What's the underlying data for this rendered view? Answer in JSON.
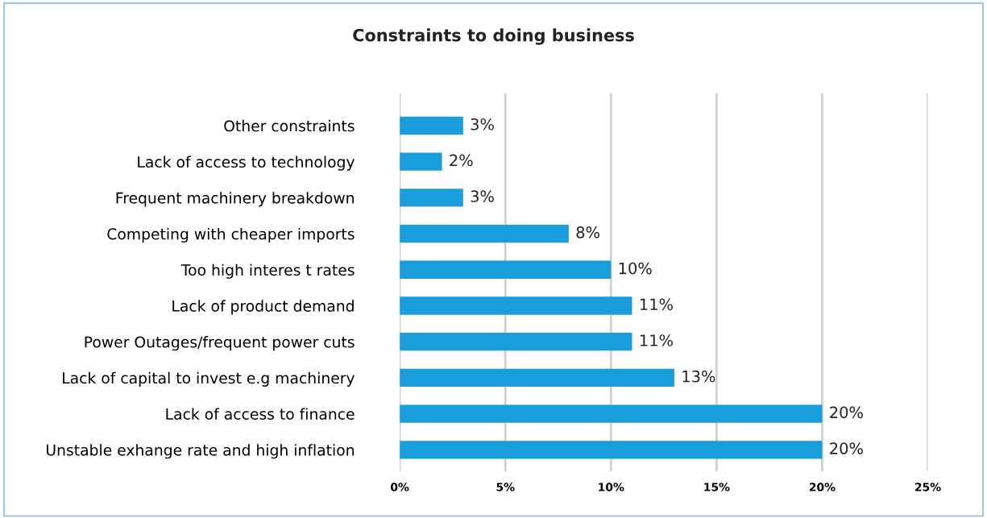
{
  "chart_data": {
    "type": "bar",
    "orientation": "horizontal",
    "title": "Constraints to doing business",
    "categories": [
      "Other constraints",
      "Lack of access to technology",
      "Frequent machinery breakdown",
      "Competing with cheaper imports",
      "Too high interes t rates",
      "Lack of product demand",
      "Power Outages/frequent power cuts",
      "Lack of capital to invest e.g machinery",
      "Lack of access to finance",
      "Unstable exhange rate and high inflation"
    ],
    "values": [
      3,
      2,
      3,
      8,
      10,
      11,
      11,
      13,
      20,
      20
    ],
    "value_labels": [
      "3%",
      "2%",
      "3%",
      "8%",
      "10%",
      "11%",
      "11%",
      "13%",
      "20%",
      "20%"
    ],
    "color": "#1a9ddb",
    "xlim": [
      0,
      25
    ],
    "xticks": [
      {
        "value": 0,
        "label": "0%"
      },
      {
        "value": 5,
        "label": "5%"
      },
      {
        "value": 10,
        "label": "10%"
      },
      {
        "value": 15,
        "label": "15%"
      },
      {
        "value": 20,
        "label": "20%"
      },
      {
        "value": 25,
        "label": "25%"
      }
    ],
    "grid": "x",
    "legend": false
  }
}
